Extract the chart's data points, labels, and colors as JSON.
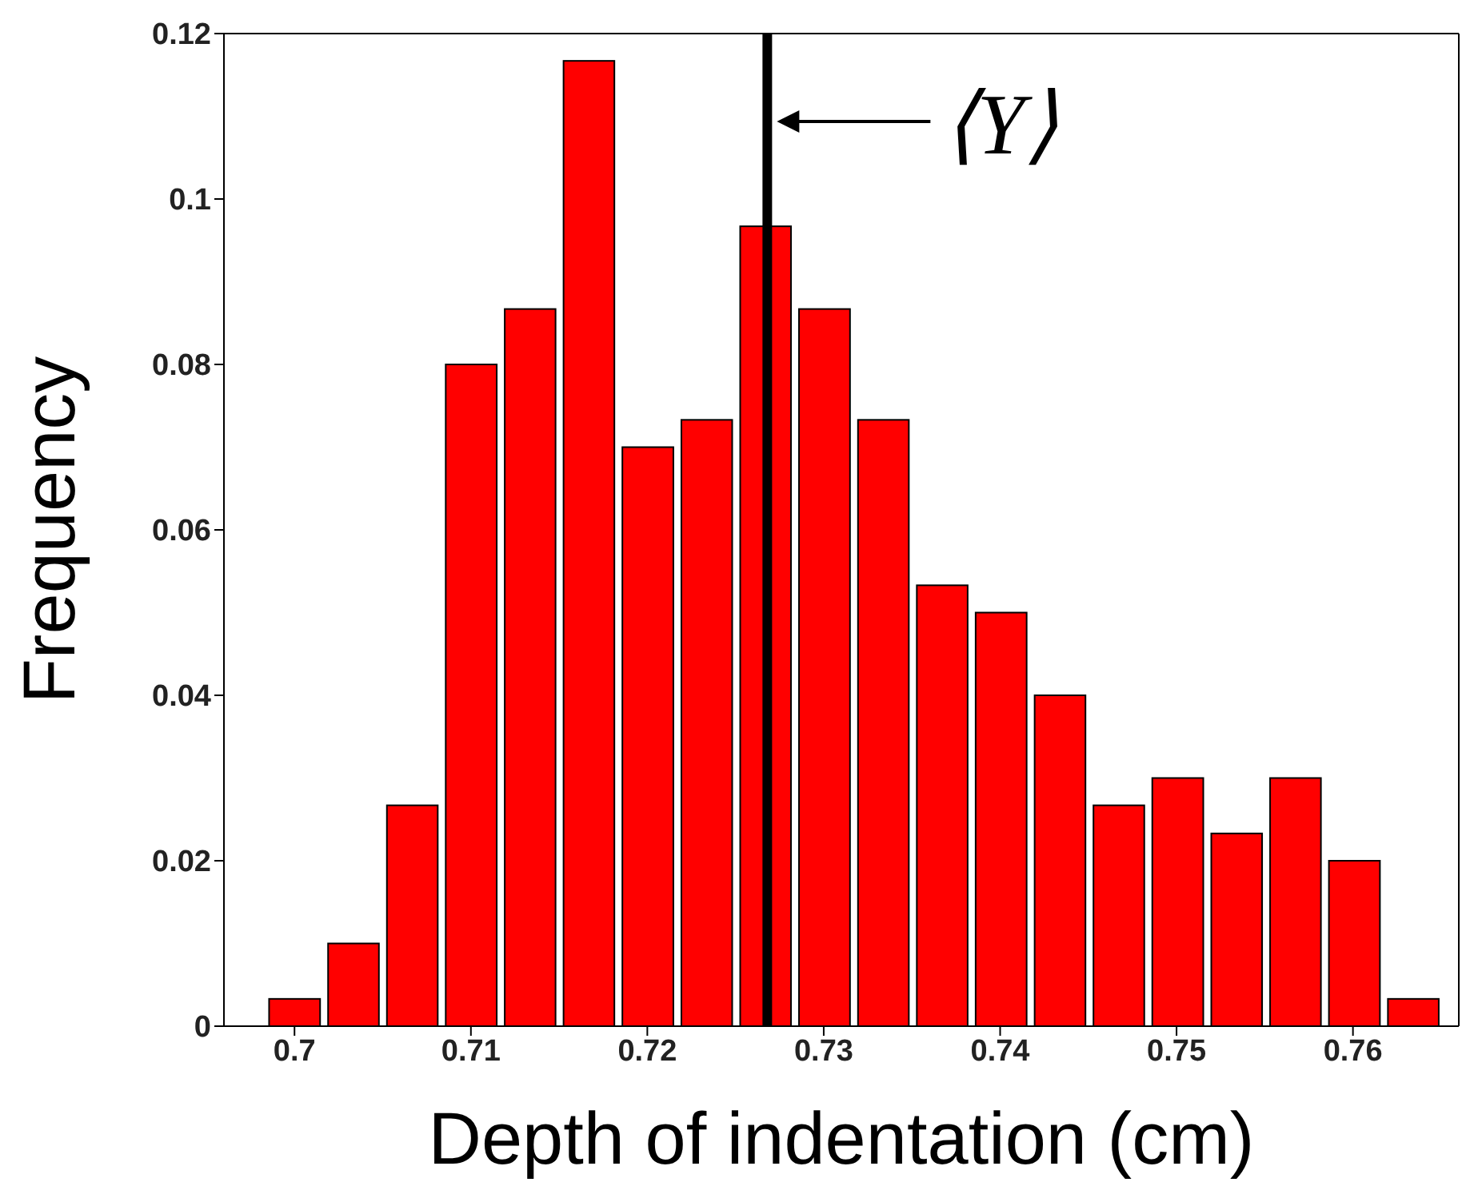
{
  "chart_data": {
    "type": "histogram",
    "xlabel": "Depth of indentation (cm)",
    "ylabel": "Frequency",
    "bins": [
      0.69833,
      0.70167,
      0.705,
      0.70833,
      0.71167,
      0.715,
      0.71833,
      0.72167,
      0.725,
      0.72833,
      0.73167,
      0.735,
      0.73833,
      0.74167,
      0.745,
      0.74833,
      0.75167,
      0.755,
      0.75833,
      0.76167,
      0.765
    ],
    "values": [
      0.0033,
      0.01,
      0.0267,
      0.08,
      0.0867,
      0.1167,
      0.07,
      0.0733,
      0.0967,
      0.0867,
      0.0733,
      0.0533,
      0.05,
      0.04,
      0.0267,
      0.03,
      0.0233,
      0.03,
      0.02,
      0.0033
    ],
    "color": "#ff0000",
    "xlim": [
      0.696,
      0.766
    ],
    "xticks": [
      0.7,
      0.71,
      0.72,
      0.73,
      0.74,
      0.75,
      0.76
    ],
    "ylim": [
      0,
      0.12
    ],
    "yticks": [
      0,
      0.02,
      0.04,
      0.06,
      0.08,
      0.1,
      0.12
    ],
    "ref_lines": [
      {
        "axis": "x",
        "value": 0.7268,
        "label": "⟨Y⟩",
        "color": "#000000"
      }
    ],
    "grid": false,
    "legend": false
  }
}
